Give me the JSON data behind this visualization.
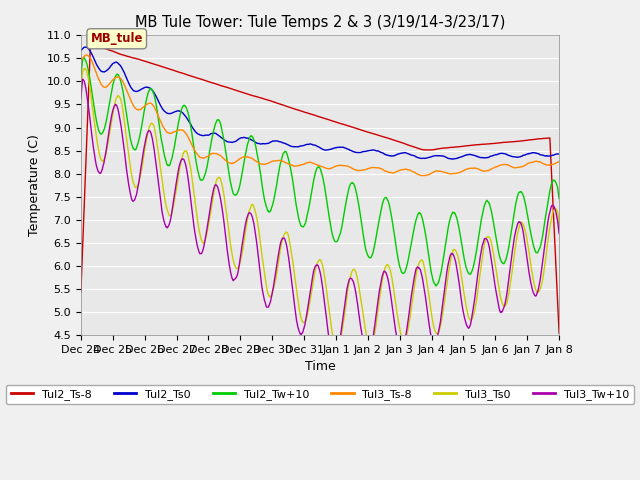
{
  "title": "MB Tule Tower: Tule Temps 2 & 3 (3/19/14-3/23/17)",
  "xlabel": "Time",
  "ylabel": "Temperature (C)",
  "ylim": [
    4.5,
    11.0
  ],
  "yticks": [
    4.5,
    5.0,
    5.5,
    6.0,
    6.5,
    7.0,
    7.5,
    8.0,
    8.5,
    9.0,
    9.5,
    10.0,
    10.5,
    11.0
  ],
  "xtick_labels": [
    "Dec 24",
    "Dec 25",
    "Dec 26",
    "Dec 27",
    "Dec 28",
    "Dec 29",
    "Dec 30",
    "Dec 31",
    "Jan 1",
    "Jan 2",
    "Jan 3",
    "Jan 4",
    "Jan 5",
    "Jan 6",
    "Jan 7",
    "Jan 8"
  ],
  "series_colors": [
    "#cc0000",
    "#0000cc",
    "#00cc00",
    "#ff8800",
    "#cccc00",
    "#aa00aa"
  ],
  "series_labels": [
    "Tul2_Ts-8",
    "Tul2_Ts0",
    "Tul2_Tw+10",
    "Tul3_Ts-8",
    "Tul3_Ts0",
    "Tul3_Tw+10"
  ],
  "annotation_text": "MB_tule",
  "background_color": "#e8e8e8",
  "grid_color": "#ffffff",
  "n_points": 1500
}
